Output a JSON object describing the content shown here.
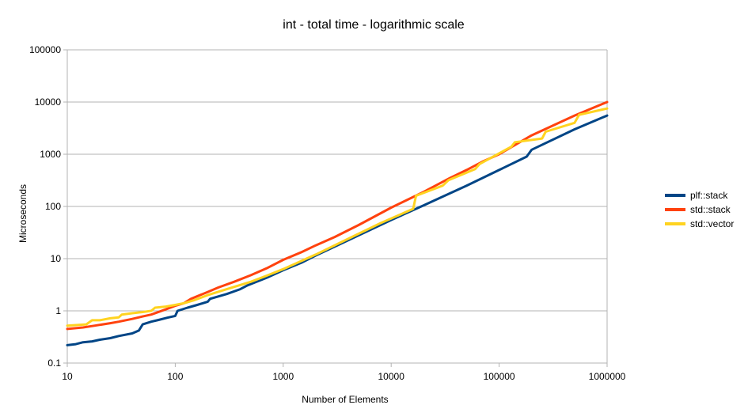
{
  "chart_data": {
    "type": "line",
    "title": "int - total time - logarithmic scale",
    "xlabel": "Number of Elements",
    "ylabel": "Microseconds",
    "xscale": "log",
    "yscale": "log",
    "xlim": [
      10,
      1000000
    ],
    "ylim": [
      0.1,
      100000
    ],
    "x_ticks": [
      "10",
      "100",
      "1000",
      "10000",
      "100000",
      "1000000"
    ],
    "y_ticks": [
      "0.1",
      "1",
      "10",
      "100",
      "1000",
      "10000",
      "100000"
    ],
    "grid": "horizontal",
    "legend_position": "right",
    "series": [
      {
        "name": "plf::stack",
        "color": "#004586",
        "points": [
          [
            10,
            0.22
          ],
          [
            12,
            0.23
          ],
          [
            14,
            0.25
          ],
          [
            17,
            0.26
          ],
          [
            20,
            0.28
          ],
          [
            25,
            0.3
          ],
          [
            30,
            0.33
          ],
          [
            40,
            0.37
          ],
          [
            46,
            0.42
          ],
          [
            50,
            0.55
          ],
          [
            60,
            0.62
          ],
          [
            70,
            0.67
          ],
          [
            85,
            0.74
          ],
          [
            100,
            0.8
          ],
          [
            105,
            1.0
          ],
          [
            130,
            1.15
          ],
          [
            160,
            1.3
          ],
          [
            200,
            1.5
          ],
          [
            210,
            1.7
          ],
          [
            300,
            2.1
          ],
          [
            400,
            2.6
          ],
          [
            470,
            3.1
          ],
          [
            700,
            4.3
          ],
          [
            1000,
            6.0
          ],
          [
            1500,
            8.5
          ],
          [
            2000,
            11.5
          ],
          [
            3000,
            17
          ],
          [
            5000,
            28
          ],
          [
            10000,
            55
          ],
          [
            20000,
            105
          ],
          [
            50000,
            250
          ],
          [
            100000,
            500
          ],
          [
            180000,
            900
          ],
          [
            200000,
            1220
          ],
          [
            500000,
            3000
          ],
          [
            1000000,
            5500
          ]
        ]
      },
      {
        "name": "std::stack",
        "color": "#ff420e",
        "points": [
          [
            10,
            0.45
          ],
          [
            14,
            0.48
          ],
          [
            18,
            0.52
          ],
          [
            25,
            0.58
          ],
          [
            30,
            0.62
          ],
          [
            40,
            0.7
          ],
          [
            50,
            0.78
          ],
          [
            60,
            0.85
          ],
          [
            80,
            1.05
          ],
          [
            100,
            1.25
          ],
          [
            120,
            1.4
          ],
          [
            140,
            1.7
          ],
          [
            200,
            2.3
          ],
          [
            250,
            2.8
          ],
          [
            350,
            3.6
          ],
          [
            500,
            4.8
          ],
          [
            700,
            6.5
          ],
          [
            1000,
            9.5
          ],
          [
            1500,
            13.5
          ],
          [
            2000,
            18
          ],
          [
            3000,
            26
          ],
          [
            5000,
            44
          ],
          [
            10000,
            95
          ],
          [
            20000,
            190
          ],
          [
            35000,
            350
          ],
          [
            50000,
            500
          ],
          [
            70000,
            720
          ],
          [
            100000,
            1000
          ],
          [
            200000,
            2300
          ],
          [
            500000,
            5500
          ],
          [
            1000000,
            10000
          ]
        ]
      },
      {
        "name": "std::vector",
        "color": "#ffd320",
        "points": [
          [
            10,
            0.52
          ],
          [
            15,
            0.55
          ],
          [
            17,
            0.66
          ],
          [
            20,
            0.66
          ],
          [
            25,
            0.72
          ],
          [
            30,
            0.75
          ],
          [
            32,
            0.85
          ],
          [
            40,
            0.9
          ],
          [
            50,
            0.95
          ],
          [
            60,
            1.0
          ],
          [
            65,
            1.15
          ],
          [
            80,
            1.2
          ],
          [
            100,
            1.3
          ],
          [
            120,
            1.4
          ],
          [
            150,
            1.6
          ],
          [
            200,
            2.0
          ],
          [
            300,
            2.6
          ],
          [
            500,
            3.6
          ],
          [
            700,
            4.7
          ],
          [
            1000,
            6.3
          ],
          [
            2000,
            12
          ],
          [
            4000,
            24
          ],
          [
            8000,
            48
          ],
          [
            16000,
            90
          ],
          [
            17000,
            160
          ],
          [
            30000,
            250
          ],
          [
            34000,
            320
          ],
          [
            60000,
            520
          ],
          [
            66000,
            650
          ],
          [
            130000,
            1400
          ],
          [
            140000,
            1700
          ],
          [
            250000,
            2000
          ],
          [
            270000,
            2700
          ],
          [
            500000,
            4000
          ],
          [
            550000,
            5700
          ],
          [
            1000000,
            7500
          ]
        ]
      }
    ]
  }
}
